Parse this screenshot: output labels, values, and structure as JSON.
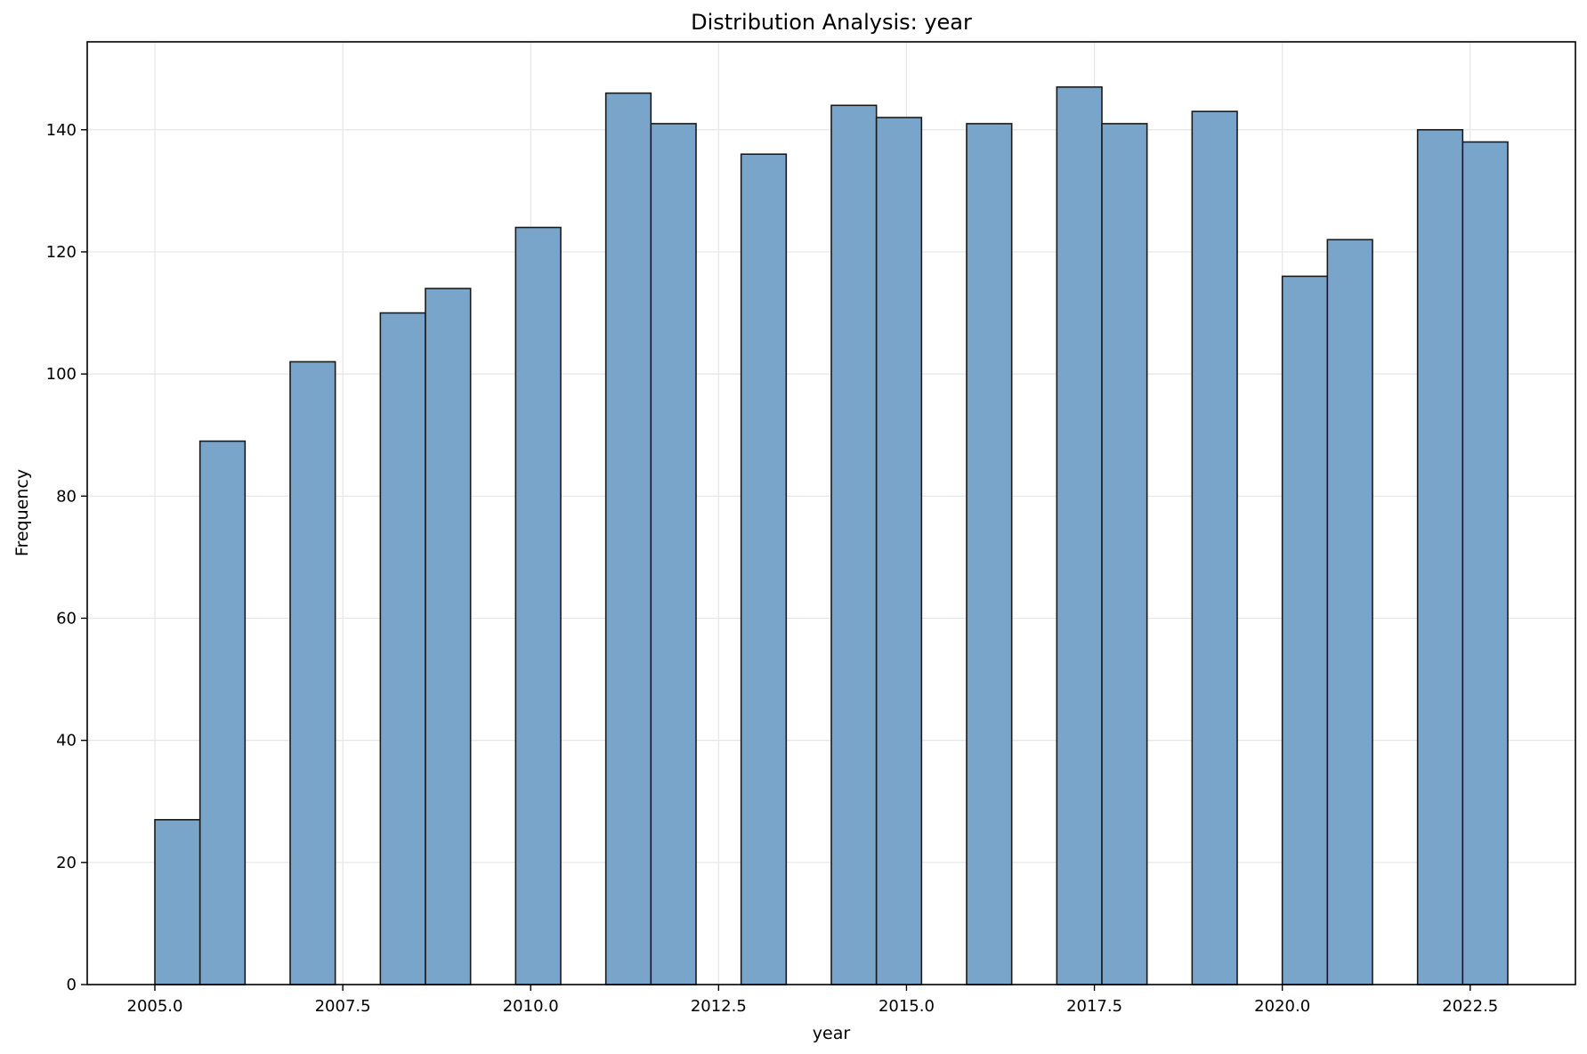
{
  "chart_data": {
    "type": "bar",
    "subtype": "histogram",
    "title": "Distribution Analysis: year",
    "xlabel": "year",
    "ylabel": "Frequency",
    "xlim": [
      2004.1,
      2023.9
    ],
    "ylim": [
      0,
      154.4
    ],
    "xticks": [
      2005.0,
      2007.5,
      2010.0,
      2012.5,
      2015.0,
      2017.5,
      2020.0,
      2022.5
    ],
    "xtick_labels": [
      "2005.0",
      "2007.5",
      "2010.0",
      "2012.5",
      "2015.0",
      "2017.5",
      "2020.0",
      "2022.5"
    ],
    "yticks": [
      0,
      20,
      40,
      60,
      80,
      100,
      120,
      140
    ],
    "ytick_labels": [
      "0",
      "20",
      "40",
      "60",
      "80",
      "100",
      "120",
      "140"
    ],
    "grid": true,
    "bar_color": "#7aa5cb",
    "edge_color": "#1a1a1a",
    "bins": [
      {
        "x0": 2005.0,
        "x1": 2005.6,
        "value": 27
      },
      {
        "x0": 2005.6,
        "x1": 2006.2,
        "value": 89
      },
      {
        "x0": 2006.2,
        "x1": 2006.8,
        "value": 0
      },
      {
        "x0": 2006.8,
        "x1": 2007.4,
        "value": 102
      },
      {
        "x0": 2007.4,
        "x1": 2008.0,
        "value": 0
      },
      {
        "x0": 2008.0,
        "x1": 2008.6,
        "value": 110
      },
      {
        "x0": 2008.6,
        "x1": 2009.2,
        "value": 114
      },
      {
        "x0": 2009.2,
        "x1": 2009.8,
        "value": 0
      },
      {
        "x0": 2009.8,
        "x1": 2010.4,
        "value": 124
      },
      {
        "x0": 2010.4,
        "x1": 2011.0,
        "value": 0
      },
      {
        "x0": 2011.0,
        "x1": 2011.6,
        "value": 146
      },
      {
        "x0": 2011.6,
        "x1": 2012.2,
        "value": 141
      },
      {
        "x0": 2012.2,
        "x1": 2012.8,
        "value": 0
      },
      {
        "x0": 2012.8,
        "x1": 2013.4,
        "value": 136
      },
      {
        "x0": 2013.4,
        "x1": 2014.0,
        "value": 0
      },
      {
        "x0": 2014.0,
        "x1": 2014.6,
        "value": 144
      },
      {
        "x0": 2014.6,
        "x1": 2015.2,
        "value": 142
      },
      {
        "x0": 2015.2,
        "x1": 2015.8,
        "value": 0
      },
      {
        "x0": 2015.8,
        "x1": 2016.4,
        "value": 141
      },
      {
        "x0": 2016.4,
        "x1": 2017.0,
        "value": 0
      },
      {
        "x0": 2017.0,
        "x1": 2017.6,
        "value": 147
      },
      {
        "x0": 2017.6,
        "x1": 2018.2,
        "value": 141
      },
      {
        "x0": 2018.2,
        "x1": 2018.8,
        "value": 0
      },
      {
        "x0": 2018.8,
        "x1": 2019.4,
        "value": 143
      },
      {
        "x0": 2019.4,
        "x1": 2020.0,
        "value": 0
      },
      {
        "x0": 2020.0,
        "x1": 2020.6,
        "value": 116
      },
      {
        "x0": 2020.6,
        "x1": 2021.2,
        "value": 122
      },
      {
        "x0": 2021.2,
        "x1": 2021.8,
        "value": 0
      },
      {
        "x0": 2021.8,
        "x1": 2022.4,
        "value": 140
      },
      {
        "x0": 2022.4,
        "x1": 2023.0,
        "value": 138
      }
    ]
  }
}
